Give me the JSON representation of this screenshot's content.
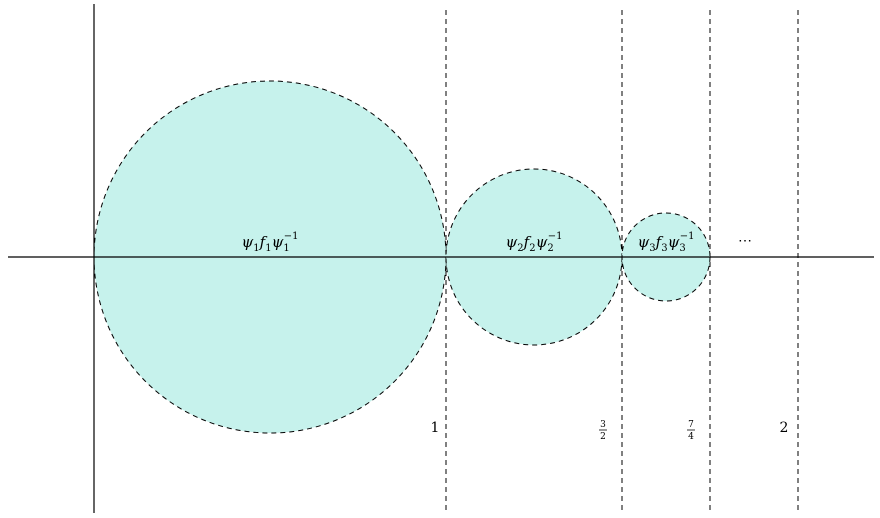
{
  "colors": {
    "disk_fill": "#c6f2ec",
    "stroke": "#000000"
  },
  "disks": [
    {
      "from": 0,
      "to": 1,
      "label": {
        "base": "ψ1f1ψ1",
        "parts": [
          "ψ",
          "1",
          "f",
          "1",
          "ψ",
          "1",
          "−1"
        ]
      }
    },
    {
      "from": 1,
      "to": 1.5,
      "label": {
        "parts": [
          "ψ",
          "2",
          "f",
          "2",
          "ψ",
          "2",
          "−1"
        ]
      }
    },
    {
      "from": 1.5,
      "to": 1.75,
      "label": {
        "parts": [
          "ψ",
          "3",
          "f",
          "3",
          "ψ",
          "3",
          "−1"
        ]
      }
    }
  ],
  "ellipsis": "⋯",
  "ticks": [
    {
      "value": 1,
      "text": "1"
    },
    {
      "value": 1.5,
      "numerator": "3",
      "denominator": "2"
    },
    {
      "value": 1.75,
      "numerator": "7",
      "denominator": "4"
    },
    {
      "value": 2,
      "text": "2"
    }
  ]
}
